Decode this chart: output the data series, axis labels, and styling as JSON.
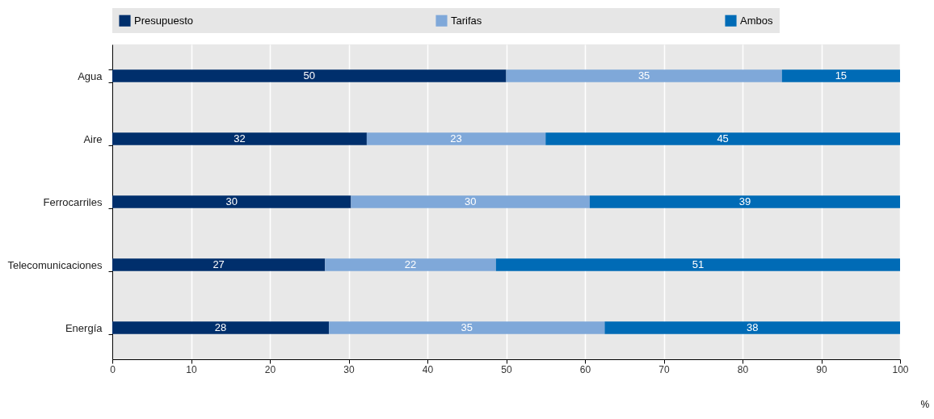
{
  "chart_data": {
    "type": "bar",
    "orientation": "horizontal",
    "stacked": true,
    "categories": [
      "Agua",
      "Aire",
      "Ferrocarriles",
      "Telecomunicaciones",
      "Energía"
    ],
    "series": [
      {
        "name": "Presupuesto",
        "color": "#002f6c",
        "values": [
          50,
          32.3,
          30.3,
          27,
          27.5
        ],
        "value_labels": [
          "50",
          "32",
          "30",
          "27",
          "28"
        ]
      },
      {
        "name": "Tarifas",
        "color": "#7fa8d9",
        "values": [
          35,
          22.7,
          30.3,
          21.7,
          35
        ],
        "value_labels": [
          "35",
          "23",
          "30",
          "22",
          "35"
        ]
      },
      {
        "name": "Ambos",
        "color": "#006bb6",
        "values": [
          15,
          45,
          39.4,
          51.3,
          37.5
        ],
        "value_labels": [
          "15",
          "45",
          "39",
          "51",
          "38"
        ]
      }
    ],
    "xlabel": "%",
    "xlim": [
      0,
      100
    ],
    "xticks": [
      0,
      10,
      20,
      30,
      40,
      50,
      60,
      70,
      80,
      90,
      100
    ],
    "grid": "x",
    "legend": "top"
  }
}
